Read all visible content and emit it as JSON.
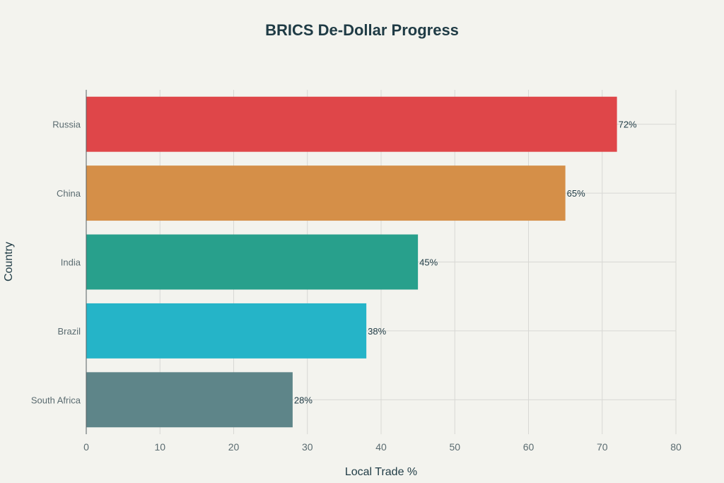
{
  "chart_data": {
    "type": "bar",
    "orientation": "horizontal",
    "title": "BRICS De-Dollar Progress",
    "xlabel": "Local Trade %",
    "ylabel": "Country",
    "categories": [
      "Russia",
      "China",
      "India",
      "Brazil",
      "South Africa"
    ],
    "values": [
      72,
      65,
      45,
      38,
      28
    ],
    "data_labels": [
      "72%",
      "65%",
      "45%",
      "38%",
      "28%"
    ],
    "colors": [
      "#df4649",
      "#d58f48",
      "#28a08c",
      "#25b4c8",
      "#5e8589"
    ],
    "xlim": [
      0,
      80
    ],
    "xticks": [
      0,
      10,
      20,
      30,
      40,
      50,
      60,
      70,
      80
    ],
    "grid": true,
    "legend": "none"
  }
}
